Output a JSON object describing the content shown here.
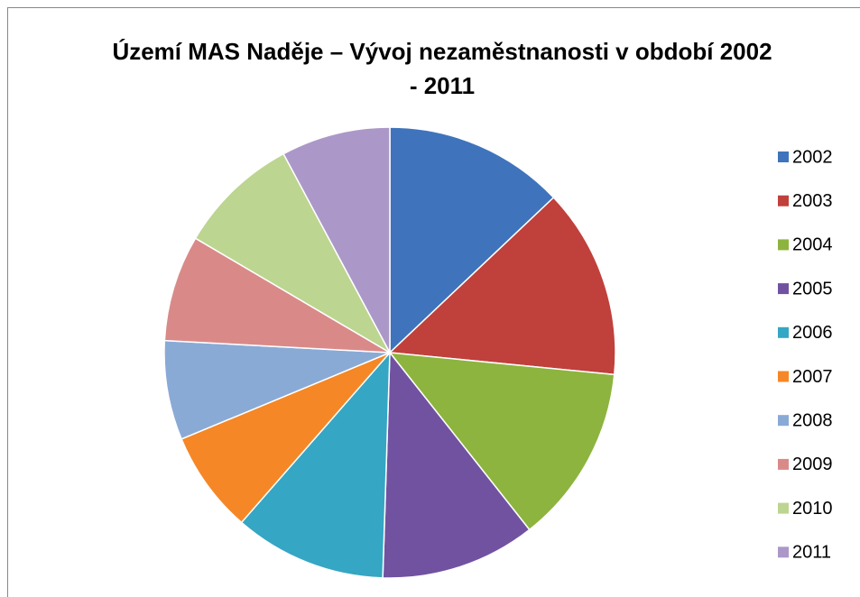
{
  "chart_data": {
    "type": "pie",
    "title": "Území MAS Naděje – Vývoj nezaměstnanosti v období 2002 - 2011",
    "categories": [
      "2002",
      "2003",
      "2004",
      "2005",
      "2006",
      "2007",
      "2008",
      "2009",
      "2010",
      "2011"
    ],
    "values": [
      12.9,
      13.6,
      12.8,
      11.1,
      10.9,
      7.3,
      7.1,
      7.6,
      8.7,
      7.8
    ],
    "colors": [
      "#3f74bc",
      "#c0403c",
      "#8db43e",
      "#7152a0",
      "#35a6c4",
      "#f58726",
      "#8aaad6",
      "#d98a88",
      "#bcd590",
      "#ab98c8"
    ],
    "legend": "right"
  }
}
